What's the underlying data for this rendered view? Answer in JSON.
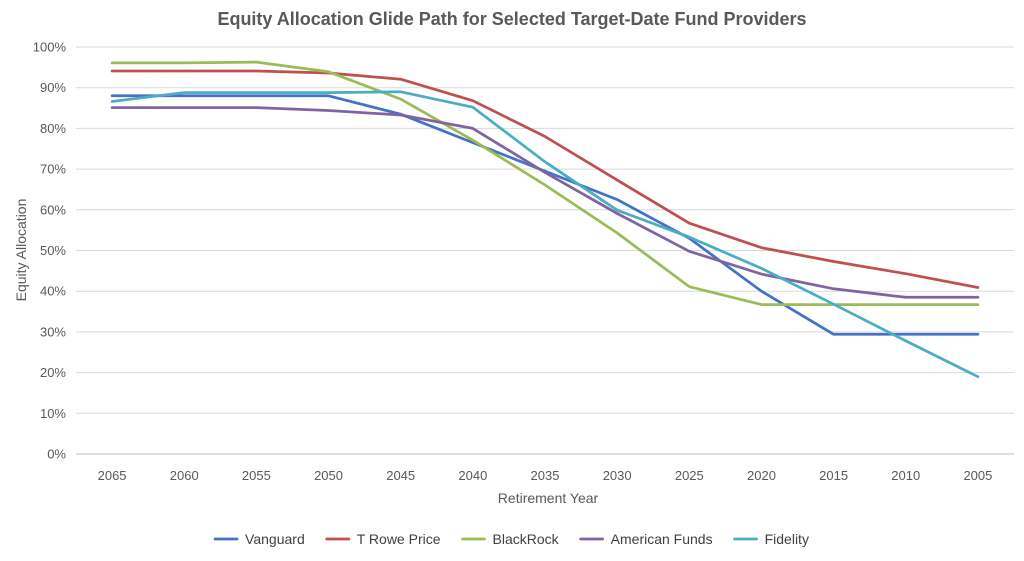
{
  "chart_data": {
    "type": "line",
    "title": "Equity Allocation Glide Path for Selected Target-Date Fund Providers",
    "xlabel": "Retirement Year",
    "ylabel": "Equity Allocation",
    "categories": [
      "2065",
      "2060",
      "2055",
      "2050",
      "2045",
      "2040",
      "2035",
      "2030",
      "2025",
      "2020",
      "2015",
      "2010",
      "2005"
    ],
    "ylim": [
      0,
      100
    ],
    "y_ticks": [
      0,
      10,
      20,
      30,
      40,
      50,
      60,
      70,
      80,
      90,
      100
    ],
    "y_tick_labels": [
      "0%",
      "10%",
      "20%",
      "30%",
      "40%",
      "50%",
      "60%",
      "70%",
      "80%",
      "90%",
      "100%"
    ],
    "grid": true,
    "legend_position": "bottom",
    "series": [
      {
        "name": "Vanguard",
        "color": "#4472C4",
        "values": [
          88,
          88,
          88,
          88,
          83.5,
          76.5,
          69.5,
          62.5,
          53,
          40,
          29.4,
          29.4,
          29.4
        ]
      },
      {
        "name": "T Rowe Price",
        "color": "#C0504D",
        "values": [
          94.1,
          94.1,
          94.1,
          93.6,
          92.1,
          86.8,
          78,
          67.3,
          56.7,
          50.7,
          47.3,
          44.3,
          40.9
        ]
      },
      {
        "name": "BlackRock",
        "color": "#9BBB59",
        "values": [
          96.1,
          96.1,
          96.3,
          93.9,
          87.2,
          77.1,
          66.1,
          54.3,
          41.1,
          36.7,
          36.7,
          36.7,
          36.7
        ]
      },
      {
        "name": "American Funds",
        "color": "#8064A2",
        "values": [
          85.1,
          85.1,
          85.1,
          84.4,
          83.3,
          80,
          69.2,
          59.1,
          49.8,
          44.2,
          40.6,
          38.5,
          38.5
        ]
      },
      {
        "name": "Fidelity",
        "color": "#4BACC6",
        "values": [
          86.6,
          88.8,
          88.8,
          88.8,
          89,
          85.2,
          71.8,
          59.9,
          53.3,
          45.6,
          36.8,
          27.8,
          19
        ]
      }
    ]
  }
}
